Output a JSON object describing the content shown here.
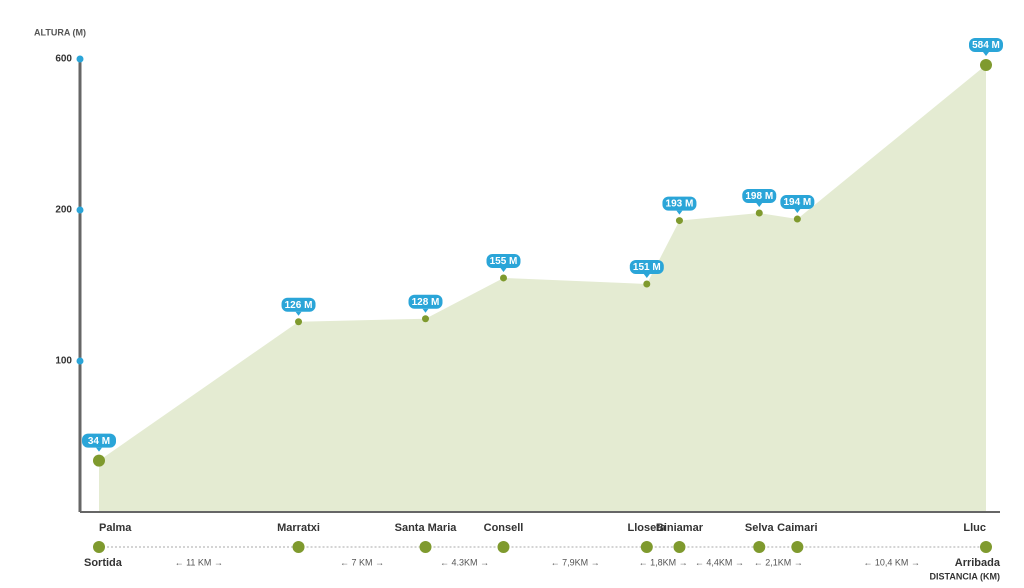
{
  "chart_data": {
    "type": "elevation-profile",
    "y_title": "ALTURA (M)",
    "x_title": "DISTANCIA (KM)",
    "scale": "equal-interval-ticks",
    "ylim": [
      0,
      600
    ],
    "yticks": [
      100,
      200,
      600
    ],
    "categories": [
      "Palma",
      "Marratxi",
      "Santa Maria",
      "Consell",
      "Lloseta",
      "Biniamar",
      "Selva",
      "Caimari",
      "Lluc"
    ],
    "values": [
      34,
      126,
      128,
      155,
      151,
      193,
      198,
      194,
      584
    ],
    "value_labels": [
      "34 M",
      "126 M",
      "128 M",
      "155 M",
      "151 M",
      "193 M",
      "198 M",
      "194 M",
      "584 M"
    ],
    "distances": [
      11,
      7,
      4.3,
      7.9,
      1.8,
      4.4,
      2.1,
      10.4
    ],
    "distance_labels": [
      "← 11 KM →",
      "← 7 KM →",
      "← 4.3KM →",
      "← 7,9KM →",
      "← 1,8KM →",
      "← 4,4KM →",
      "← 2,1KM →",
      "← 10,4 KM →"
    ],
    "start_label": "Sortida",
    "end_label": "Arribada",
    "area_color": "#e4ebd2",
    "point_color": "#7f9a2e",
    "badge_color": "#2aa5d8",
    "axis_tick_color": "#2aa5d8"
  }
}
